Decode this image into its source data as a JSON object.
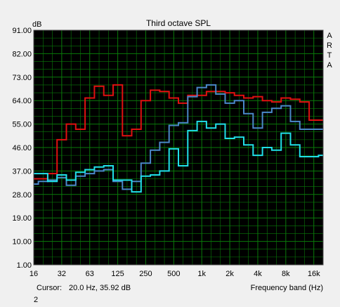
{
  "window": {
    "cursor_label": "Cursor:",
    "cursor_readout": "20.0 Hz, 35.92 dB",
    "footer_number": "2"
  },
  "side_letters": [
    "A",
    "R",
    "T",
    "A"
  ],
  "colors": {
    "background": "#000000",
    "grid": "#0a7a0a",
    "series_red": "#e01010",
    "series_blue": "#4a88c8",
    "series_cyan": "#20e0e8"
  },
  "chart_data": {
    "type": "line",
    "title": "Third octave SPL",
    "ylabel": "dB",
    "xlabel": "Frequency band (Hz)",
    "ylim": [
      1.0,
      91.0
    ],
    "y_ticks": [
      "91.00",
      "82.00",
      "73.00",
      "64.00",
      "55.00",
      "46.00",
      "37.00",
      "28.00",
      "19.00",
      "10.00",
      "1.00"
    ],
    "x_ticks": [
      "16",
      "32",
      "63",
      "125",
      "250",
      "500",
      "1k",
      "2k",
      "4k",
      "8k",
      "16k"
    ],
    "x_bands": [
      "16",
      "20",
      "25",
      "31.5",
      "40",
      "50",
      "63",
      "80",
      "100",
      "125",
      "160",
      "200",
      "250",
      "315",
      "400",
      "500",
      "630",
      "800",
      "1k",
      "1.25k",
      "1.6k",
      "2k",
      "2.5k",
      "3.15k",
      "4k",
      "5k",
      "6.3k",
      "8k",
      "10k",
      "12.5k",
      "16k",
      "20k"
    ],
    "series": [
      {
        "color": "#e01010",
        "values": [
          34,
          34,
          36,
          49,
          55,
          53,
          65,
          69.5,
          66,
          70,
          50.5,
          53,
          64,
          68,
          67.5,
          65,
          63,
          66,
          66,
          67.5,
          67.5,
          67,
          66,
          65,
          65.5,
          64,
          63.5,
          65,
          64.5,
          63.5,
          56.5,
          56.5
        ]
      },
      {
        "color": "#4a88c8",
        "values": [
          32,
          33,
          33.5,
          34.5,
          31.5,
          35,
          36,
          37,
          37.5,
          33,
          30,
          33,
          40,
          45,
          48,
          54.5,
          55.5,
          65.5,
          69,
          70,
          66.5,
          63,
          64,
          59,
          53.5,
          59.5,
          61,
          62,
          56,
          53,
          53,
          53
        ]
      },
      {
        "color": "#20e0e8",
        "values": [
          36,
          36,
          33,
          35.5,
          33.5,
          36.5,
          37.5,
          38.5,
          39,
          33.5,
          33.5,
          29,
          35,
          35.5,
          37,
          45.5,
          39,
          52.5,
          56,
          53.5,
          55,
          49.5,
          50,
          47,
          43,
          46,
          45,
          51.5,
          47,
          42.5,
          42.5,
          43
        ]
      }
    ]
  }
}
